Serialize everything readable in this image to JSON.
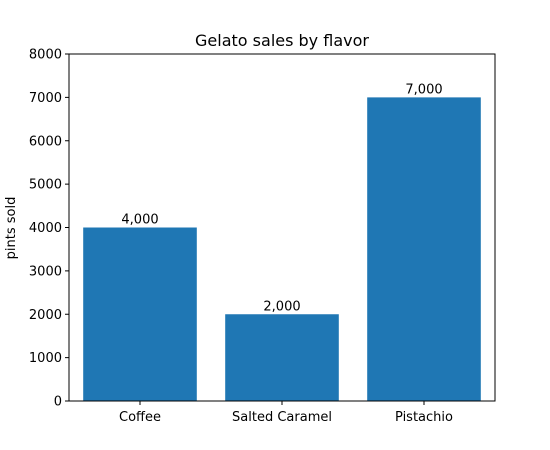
{
  "chart_data": {
    "type": "bar",
    "title": "Gelato sales by flavor",
    "xlabel": "",
    "ylabel": "pints sold",
    "categories": [
      "Coffee",
      "Salted Caramel",
      "Pistachio"
    ],
    "values": [
      4000,
      2000,
      7000
    ],
    "value_labels": [
      "4,000",
      "2,000",
      "7,000"
    ],
    "ylim": [
      0,
      8000
    ],
    "yticks": [
      0,
      1000,
      2000,
      3000,
      4000,
      5000,
      6000,
      7000,
      8000
    ],
    "ytick_labels": [
      "0",
      "1000",
      "2000",
      "3000",
      "4000",
      "5000",
      "6000",
      "7000",
      "8000"
    ],
    "bar_color": "#1f77b4",
    "grid": false,
    "legend": false
  }
}
